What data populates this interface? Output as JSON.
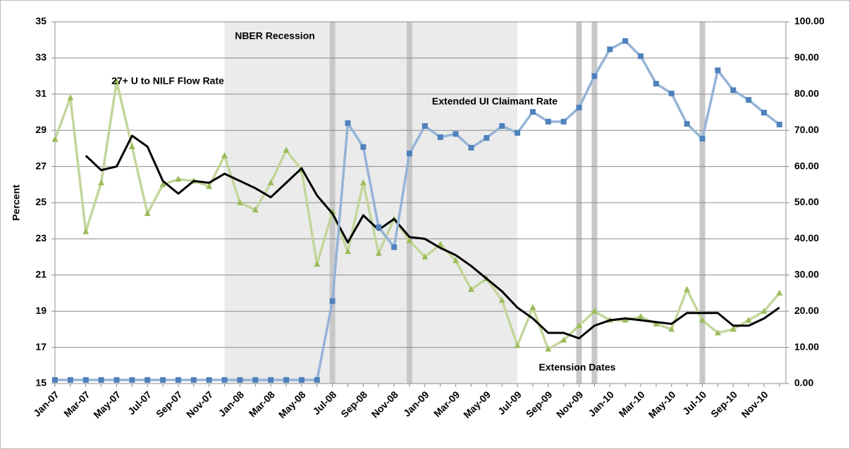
{
  "chart_data": {
    "type": "line",
    "y_label": "Percent",
    "recession_label": "NBER Recession",
    "extension_label": "Extension Dates",
    "recession_range": [
      11,
      30
    ],
    "extension_dates": [
      18,
      23,
      34,
      35,
      42
    ],
    "categories": [
      "Jan-07",
      null,
      "Mar-07",
      null,
      "May-07",
      null,
      "Jul-07",
      null,
      "Sep-07",
      null,
      "Nov-07",
      null,
      "Jan-08",
      null,
      "Mar-08",
      null,
      "May-08",
      null,
      "Jul-08",
      null,
      "Sep-08",
      null,
      "Nov-08",
      null,
      "Jan-09",
      null,
      "Mar-09",
      null,
      "May-09",
      null,
      "Jul-09",
      null,
      "Sep-09",
      null,
      "Nov-09",
      null,
      "Jan-10",
      null,
      "Mar-10",
      null,
      "May-10",
      null,
      "Jul-10",
      null,
      "Sep-10",
      null,
      "Nov-10",
      null
    ],
    "ylim": [
      15,
      35
    ],
    "yticks": [
      15,
      17,
      19,
      21,
      23,
      25,
      27,
      29,
      31,
      33,
      35
    ],
    "y2lim": [
      0,
      100
    ],
    "y2ticks": [
      {
        "value": 0,
        "label": "0.00"
      },
      {
        "value": 10,
        "label": "10.00"
      },
      {
        "value": 20,
        "label": "20.00"
      },
      {
        "value": 30,
        "label": "30.00"
      },
      {
        "value": 40,
        "label": "40.00"
      },
      {
        "value": 50,
        "label": "50.00"
      },
      {
        "value": 60,
        "label": "60.00"
      },
      {
        "value": 70,
        "label": "70.00"
      },
      {
        "value": 80,
        "label": "80.00"
      },
      {
        "value": 90,
        "label": "90.00"
      },
      {
        "value": 100,
        "label": "100.00"
      }
    ],
    "grid": true,
    "series": [
      {
        "name": "27+ U to NILF Flow Rate",
        "color": "#9bbb59",
        "line_color": "#c3d69b",
        "marker": "triangle",
        "values": [
          28.5,
          30.8,
          23.4,
          26.1,
          31.7,
          28.1,
          24.4,
          26.0,
          26.3,
          26.2,
          25.9,
          27.6,
          25.0,
          24.6,
          26.1,
          27.9,
          26.8,
          21.6,
          24.5,
          22.3,
          26.1,
          22.2,
          24.1,
          22.9,
          22.0,
          22.7,
          21.8,
          20.2,
          20.8,
          19.6,
          17.1,
          19.2,
          16.9,
          17.4,
          18.2,
          19.0,
          18.5,
          18.5,
          18.7,
          18.3,
          18.0,
          20.2,
          18.5,
          17.8,
          18.0,
          18.5,
          19.0,
          20.0
        ]
      },
      {
        "color": "#000000",
        "line_color": "#000000",
        "marker": "none",
        "values": [
          null,
          null,
          27.6,
          26.8,
          27.0,
          28.7,
          28.1,
          26.2,
          25.5,
          26.2,
          26.1,
          26.6,
          26.2,
          25.8,
          25.3,
          26.1,
          26.9,
          25.4,
          24.4,
          22.8,
          24.3,
          23.5,
          24.1,
          23.1,
          23.0,
          22.5,
          22.1,
          21.5,
          20.8,
          20.1,
          19.2,
          18.6,
          17.8,
          17.8,
          17.5,
          18.2,
          18.5,
          18.6,
          18.5,
          18.4,
          18.3,
          18.9,
          18.9,
          18.9,
          18.2,
          18.2,
          18.6,
          19.2
        ]
      },
      {
        "name": "Extended UI Claimant Rate",
        "color": "#4f81bd",
        "line_color": "#95b3d7",
        "marker": "square",
        "axis": "y2",
        "values": [
          1.0,
          1.0,
          1.0,
          1.0,
          1.0,
          1.0,
          1.0,
          1.0,
          1.0,
          1.0,
          1.0,
          1.0,
          1.0,
          1.0,
          1.0,
          1.0,
          1.0,
          1.0,
          22.8,
          72.0,
          65.4,
          43.2,
          37.7,
          63.6,
          71.2,
          68.1,
          69.0,
          65.2,
          67.9,
          71.2,
          69.3,
          75.1,
          72.4,
          72.4,
          76.3,
          85.0,
          92.4,
          94.7,
          90.5,
          82.9,
          80.2,
          71.8,
          67.7,
          86.6,
          81.1,
          78.4,
          74.9,
          71.6
        ]
      }
    ]
  }
}
